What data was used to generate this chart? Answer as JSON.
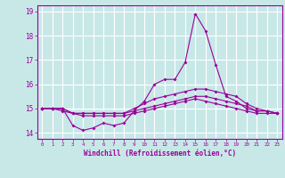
{
  "xlabel": "Windchill (Refroidissement éolien,°C)",
  "x_values": [
    0,
    1,
    2,
    3,
    4,
    5,
    6,
    7,
    8,
    9,
    10,
    11,
    12,
    13,
    14,
    15,
    16,
    17,
    18,
    19,
    20,
    21,
    22,
    23
  ],
  "line1": [
    15.0,
    15.0,
    15.0,
    14.3,
    14.1,
    14.2,
    14.4,
    14.3,
    14.4,
    14.9,
    15.3,
    16.0,
    16.2,
    16.2,
    16.9,
    18.9,
    18.2,
    16.8,
    15.5,
    15.3,
    15.0,
    14.9,
    14.9,
    14.8
  ],
  "line2": [
    15.0,
    15.0,
    15.0,
    14.8,
    14.8,
    14.8,
    14.8,
    14.8,
    14.8,
    15.0,
    15.2,
    15.4,
    15.5,
    15.6,
    15.7,
    15.8,
    15.8,
    15.7,
    15.6,
    15.5,
    15.2,
    15.0,
    14.9,
    14.8
  ],
  "line3": [
    15.0,
    15.0,
    15.0,
    14.8,
    14.8,
    14.8,
    14.8,
    14.8,
    14.8,
    14.9,
    15.0,
    15.1,
    15.2,
    15.3,
    15.4,
    15.5,
    15.5,
    15.4,
    15.3,
    15.2,
    15.1,
    14.9,
    14.9,
    14.8
  ],
  "line4": [
    15.0,
    15.0,
    14.9,
    14.8,
    14.7,
    14.7,
    14.7,
    14.7,
    14.7,
    14.8,
    14.9,
    15.0,
    15.1,
    15.2,
    15.3,
    15.4,
    15.3,
    15.2,
    15.1,
    15.0,
    14.9,
    14.8,
    14.8,
    14.8
  ],
  "line_color": "#990099",
  "bg_color": "#c8e8e8",
  "grid_color": "#ffffff",
  "ylim_min": 13.75,
  "ylim_max": 19.25,
  "yticks": [
    14,
    15,
    16,
    17,
    18,
    19
  ],
  "xticks": [
    0,
    1,
    2,
    3,
    4,
    5,
    6,
    7,
    8,
    9,
    10,
    11,
    12,
    13,
    14,
    15,
    16,
    17,
    18,
    19,
    20,
    21,
    22,
    23
  ]
}
